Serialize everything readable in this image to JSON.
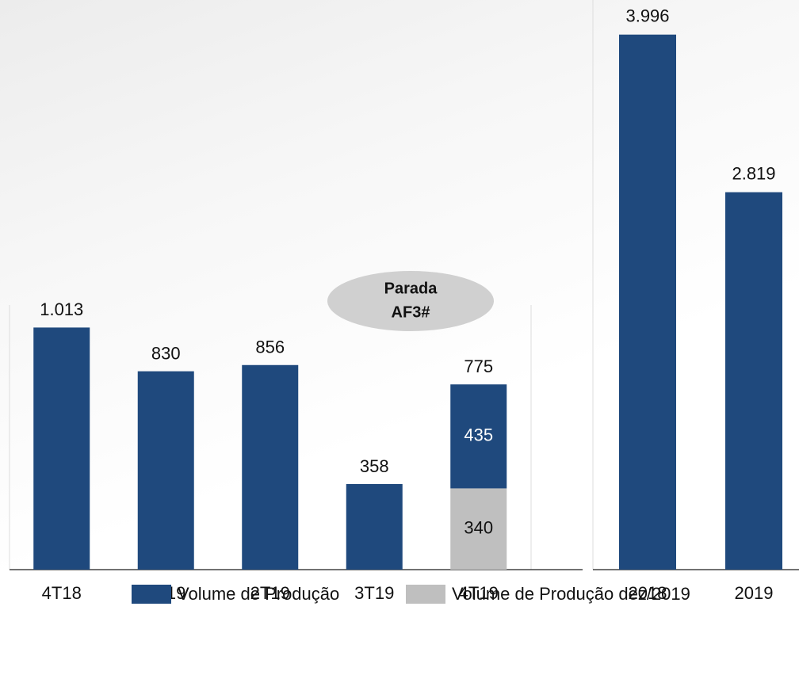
{
  "chart_data": [
    {
      "type": "stacked-bar",
      "categories": [
        "4T18",
        "1T19",
        "2T19",
        "3T19",
        "4T19"
      ],
      "series": [
        {
          "name": "Volume de Produção",
          "color": "#1f497d",
          "values": [
            1013,
            830,
            856,
            358,
            435
          ],
          "value_labels": [
            "1.013",
            "830",
            "856",
            "358",
            "435"
          ]
        },
        {
          "name": "Volume de Produção dez/2019",
          "color": "#bfbfbf",
          "values": [
            null,
            null,
            null,
            null,
            340
          ]
        }
      ],
      "totals": [
        null,
        null,
        null,
        null,
        775
      ],
      "annotation": [
        "Parada",
        "AF3#"
      ],
      "ylim": [
        0,
        1200
      ]
    },
    {
      "type": "bar",
      "categories": [
        "2018",
        "2019"
      ],
      "values": [
        3996,
        2819
      ],
      "value_labels": [
        "3.996",
        "2.819"
      ],
      "color": "#1f497d",
      "ylim": [
        0,
        4000
      ]
    }
  ]
}
